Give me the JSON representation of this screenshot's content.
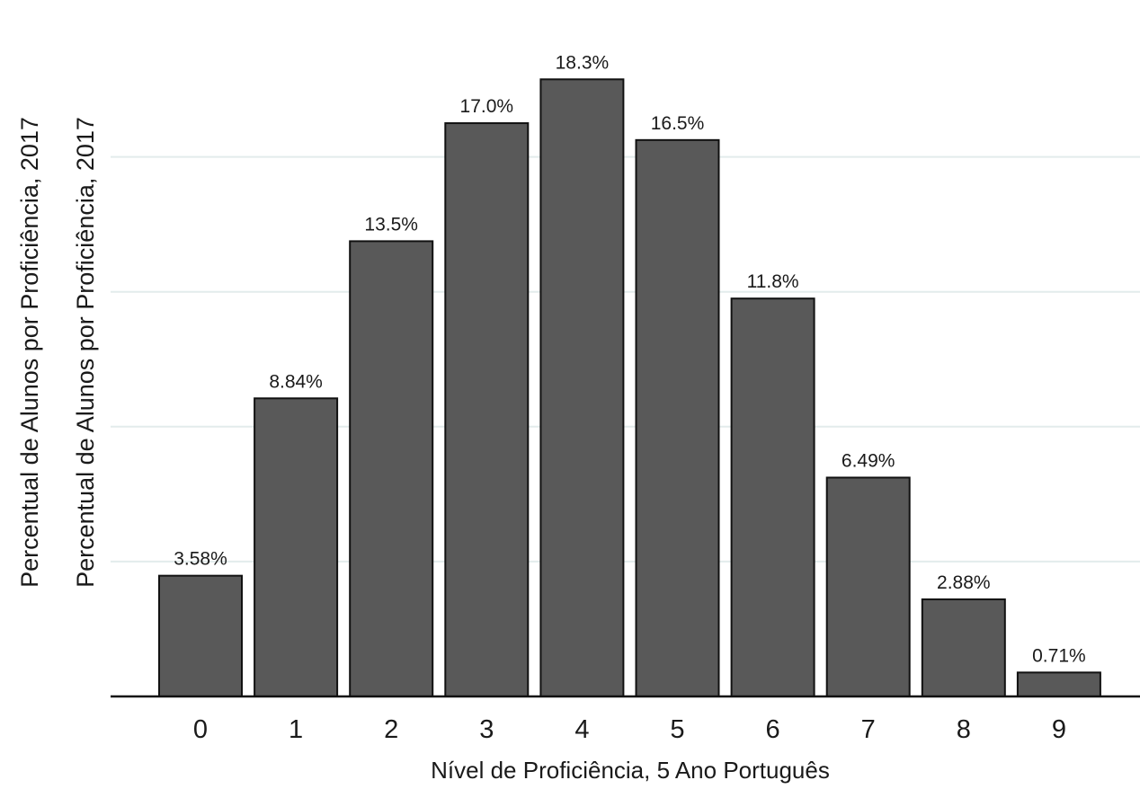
{
  "chart_data": {
    "type": "bar",
    "categories": [
      "0",
      "1",
      "2",
      "3",
      "4",
      "5",
      "6",
      "7",
      "8",
      "9"
    ],
    "values": [
      3.58,
      8.84,
      13.5,
      17.0,
      18.3,
      16.5,
      11.8,
      6.49,
      2.88,
      0.71
    ],
    "value_labels": [
      "3.58%",
      "8.84%",
      "13.5%",
      "17.0%",
      "18.3%",
      "16.5%",
      "11.8%",
      "6.49%",
      "2.88%",
      "0.71%"
    ],
    "title": "",
    "xlabel": "Nível de Proficiência, 5 Ano Português",
    "ylabel": "Percentual de Alunos por Proficiência, 2017",
    "ylabel_duplicate": "Percentual de Alunos por Proficiência, 2017",
    "ylim": [
      0,
      19.4
    ],
    "gridlines": [
      4,
      8,
      12,
      16
    ],
    "grid": true,
    "legend": "none",
    "colors": {
      "bar_fill": "#595959",
      "bar_stroke": "#111111",
      "grid": "#e3ecec",
      "axis": "#111111"
    }
  }
}
